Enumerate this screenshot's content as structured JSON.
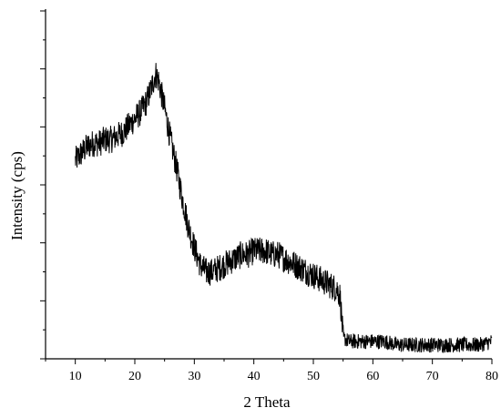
{
  "chart_data": {
    "type": "line",
    "xlabel": "2 Theta",
    "ylabel": "Intensity (cps)",
    "xlim": [
      5,
      80
    ],
    "xticks": [
      10,
      20,
      30,
      40,
      50,
      60,
      70,
      80
    ],
    "ylim": [
      0,
      100
    ],
    "y_tick_labels_shown": false,
    "grid": false,
    "line_color": "#000000",
    "series": [
      {
        "note_shape": "noisy XRD-like trace; values are approximate shape in relative intensity units",
        "x": [
          10,
          11,
          12,
          13,
          14,
          15,
          16,
          17,
          18,
          19,
          20,
          21,
          22,
          23,
          23.5,
          24,
          25,
          26,
          27,
          28,
          29,
          30,
          31,
          32,
          33,
          34,
          35,
          36,
          37,
          38,
          39,
          40,
          41,
          42,
          43,
          44,
          45,
          46,
          47,
          48,
          49,
          50,
          51,
          52,
          53,
          54,
          54.5,
          55,
          56,
          57,
          58,
          60,
          62,
          64,
          66,
          68,
          70,
          72,
          74,
          76,
          78,
          80
        ],
        "y": [
          57,
          59,
          61,
          62,
          62,
          63,
          63,
          64,
          65,
          67,
          69,
          71,
          74,
          79,
          82,
          80,
          72,
          63,
          55,
          46,
          38,
          32,
          27,
          25,
          25,
          26,
          27,
          28,
          29,
          30,
          30,
          31,
          31,
          31,
          30,
          30,
          29,
          28,
          27,
          26,
          25,
          24,
          23,
          22,
          21,
          20,
          18,
          6,
          5,
          5,
          5,
          5,
          5,
          4,
          4,
          4,
          4,
          4,
          4,
          4,
          4,
          5
        ]
      }
    ]
  }
}
